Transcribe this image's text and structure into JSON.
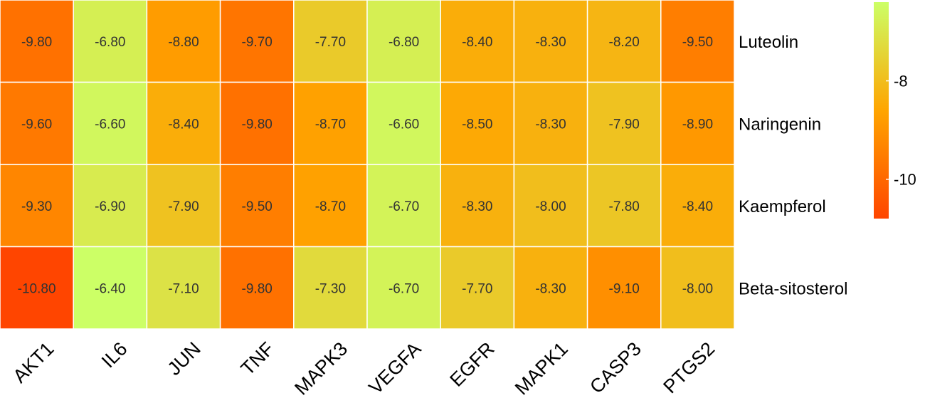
{
  "chart_data": {
    "type": "heatmap",
    "title": "",
    "xlabel": "",
    "ylabel": "",
    "x_categories": [
      "AKT1",
      "IL6",
      "JUN",
      "TNF",
      "MAPK3",
      "VEGFA",
      "EGFR",
      "MAPK1",
      "CASP3",
      "PTGS2"
    ],
    "y_categories": [
      "Luteolin",
      "Naringenin",
      "Kaempferol",
      "Beta-sitosterol"
    ],
    "values": [
      [
        -9.8,
        -6.8,
        -8.8,
        -9.7,
        -7.7,
        -6.8,
        -8.4,
        -8.3,
        -8.2,
        -9.5
      ],
      [
        -9.6,
        -6.6,
        -8.4,
        -9.8,
        -8.7,
        -6.6,
        -8.5,
        -8.3,
        -7.9,
        -8.9
      ],
      [
        -9.3,
        -6.9,
        -7.9,
        -9.5,
        -8.7,
        -6.7,
        -8.3,
        -8.0,
        -7.8,
        -8.4
      ],
      [
        -10.8,
        -6.4,
        -7.1,
        -9.8,
        -7.3,
        -6.7,
        -7.7,
        -8.3,
        -9.1,
        -8.0
      ]
    ],
    "cell_labels": [
      [
        "-9.80",
        "-6.80",
        "-8.80",
        "-9.70",
        "-7.70",
        "-6.80",
        "-8.40",
        "-8.30",
        "-8.20",
        "-9.50"
      ],
      [
        "-9.60",
        "-6.60",
        "-8.40",
        "-9.80",
        "-8.70",
        "-6.60",
        "-8.50",
        "-8.30",
        "-7.90",
        "-8.90"
      ],
      [
        "-9.30",
        "-6.90",
        "-7.90",
        "-9.50",
        "-8.70",
        "-6.70",
        "-8.30",
        "-8.00",
        "-7.80",
        "-8.40"
      ],
      [
        "-10.80",
        "-6.40",
        "-7.10",
        "-9.80",
        "-7.30",
        "-6.70",
        "-7.70",
        "-8.30",
        "-9.10",
        "-8.00"
      ]
    ],
    "color_scale": {
      "min": -10.8,
      "mid": -8.6,
      "max": -6.4,
      "colors": [
        "#ff4500",
        "#ffa500",
        "#ccff66"
      ]
    },
    "colorbar": {
      "ticks": [
        -8,
        -10
      ],
      "tick_labels": [
        "-8",
        "-10"
      ]
    },
    "legend_position": "right"
  }
}
